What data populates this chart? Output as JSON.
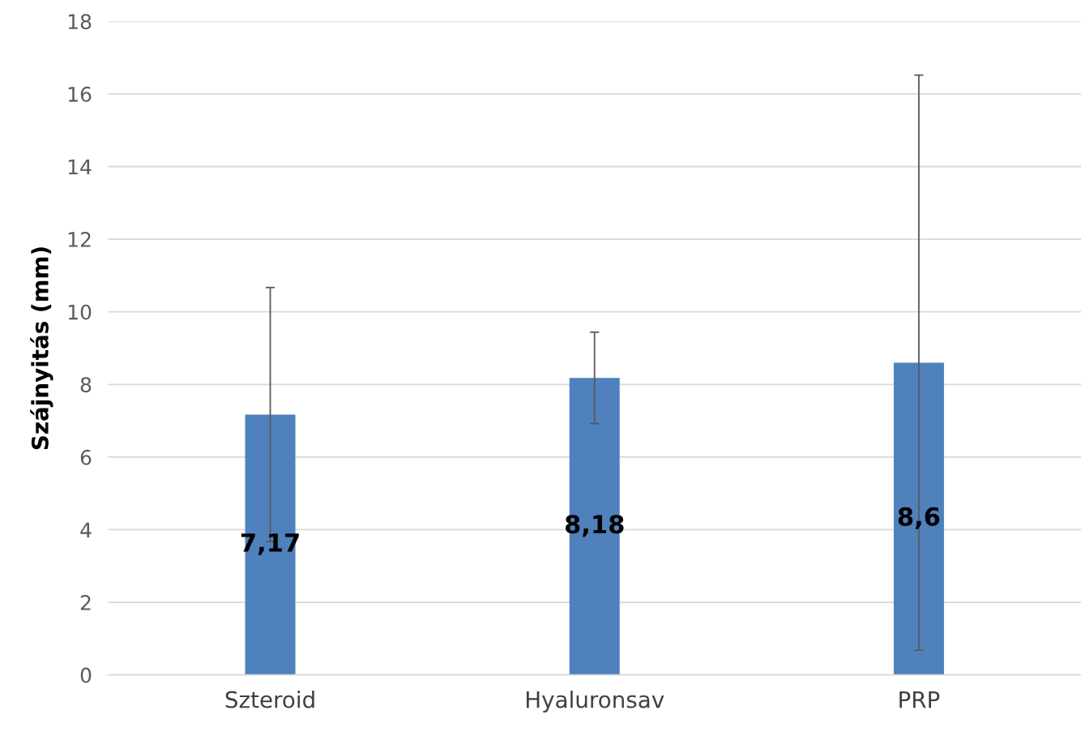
{
  "chart_data": {
    "type": "bar",
    "ylabel": "Szájnyitás (mm)",
    "categories": [
      "Szteroid",
      "Hyaluronsav",
      "PRP"
    ],
    "values": [
      7.17,
      8.18,
      8.6
    ],
    "value_labels": [
      "7,17",
      "8,18",
      "8,6"
    ],
    "errors": [
      3.5,
      1.26,
      7.92
    ],
    "color": "#4f81bd",
    "ylim": [
      0,
      18
    ],
    "yticks": [
      0,
      2,
      4,
      6,
      8,
      10,
      12,
      14,
      16,
      18
    ],
    "grid": "y"
  }
}
